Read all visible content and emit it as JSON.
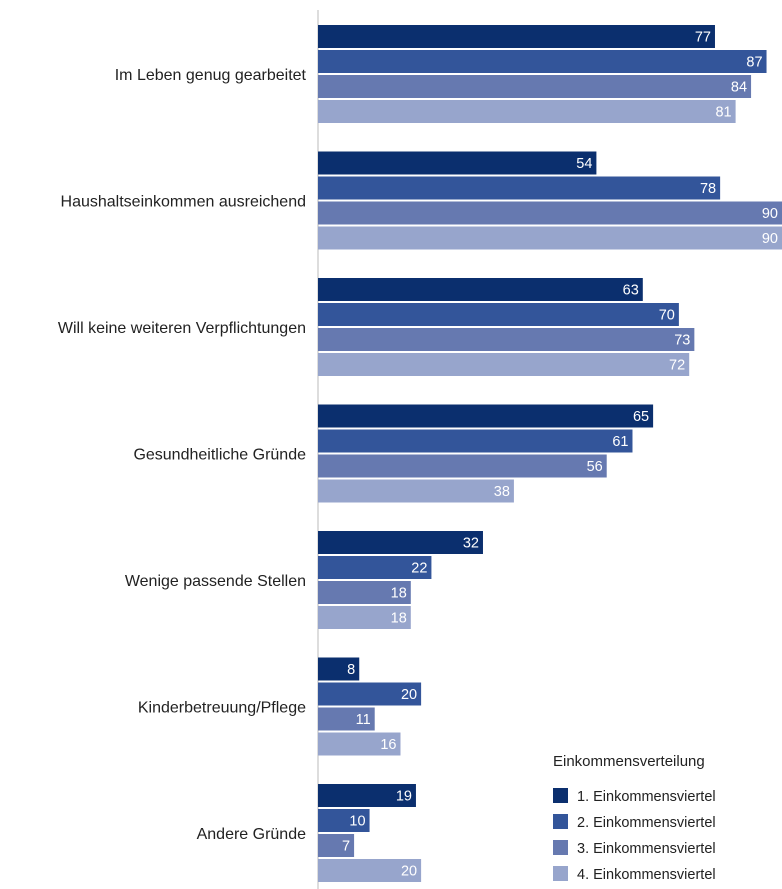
{
  "chart_data": {
    "type": "bar",
    "orientation": "horizontal",
    "categories": [
      "Im Leben genug gearbeitet",
      "Haushaltseinkommen ausreichend",
      "Will keine weiteren Verpflichtungen",
      "Gesundheitliche Gründe",
      "Wenige passende Stellen",
      "Kinderbetreuung/Pflege",
      "Andere Gründe"
    ],
    "series": [
      {
        "name": "1. Einkommensviertel",
        "color": "#0b2f6e",
        "values": [
          77,
          54,
          63,
          65,
          32,
          8,
          19
        ]
      },
      {
        "name": "2. Einkommensviertel",
        "color": "#33559a",
        "values": [
          87,
          78,
          70,
          61,
          22,
          20,
          10
        ]
      },
      {
        "name": "3. Einkommensviertel",
        "color": "#6679b0",
        "values": [
          84,
          90,
          73,
          56,
          18,
          11,
          7
        ]
      },
      {
        "name": "4. Einkommensviertel",
        "color": "#97a5cc",
        "values": [
          81,
          90,
          72,
          38,
          18,
          16,
          20
        ]
      }
    ],
    "legend_title": "Einkommensverteilung",
    "legend_position": "bottom-right",
    "xlim": [
      0,
      90
    ],
    "grid": false,
    "data_labels": true
  }
}
